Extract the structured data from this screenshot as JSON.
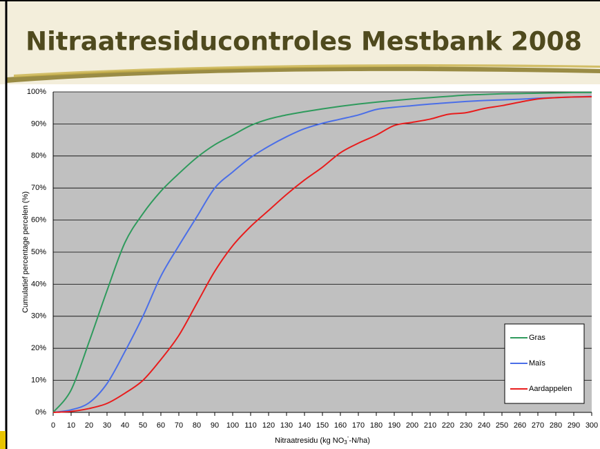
{
  "chart_data": {
    "type": "line",
    "title": "Nitraatresiducontroles Mestbank 2008",
    "ylabel": "Cumulatief percentage percelen (%)",
    "xlabel": [
      "Nitraatresidu (kg NO",
      "3",
      "-",
      "-N/ha)"
    ],
    "x": [
      0,
      10,
      20,
      30,
      40,
      50,
      60,
      70,
      80,
      90,
      100,
      110,
      120,
      130,
      140,
      150,
      160,
      170,
      180,
      190,
      200,
      210,
      220,
      230,
      240,
      250,
      260,
      270,
      280,
      290,
      300
    ],
    "series": [
      {
        "name": "Gras",
        "color": "#2e9a5c",
        "values": [
          0,
          7,
          22,
          38,
          53,
          62,
          69,
          74.5,
          79.5,
          83.5,
          86.5,
          89.5,
          91.5,
          92.8,
          93.8,
          94.7,
          95.5,
          96.2,
          96.8,
          97.3,
          97.8,
          98.2,
          98.6,
          99,
          99.2,
          99.4,
          99.5,
          99.6,
          99.7,
          99.8,
          99.8
        ]
      },
      {
        "name": "Maïs",
        "color": "#4a6ee8",
        "values": [
          0,
          0.8,
          3,
          9,
          19,
          30,
          42.5,
          52,
          61,
          70,
          75,
          79.5,
          83,
          86,
          88.5,
          90.2,
          91.5,
          92.8,
          94.5,
          95.2,
          95.7,
          96.2,
          96.6,
          97,
          97.3,
          97.5,
          97.7,
          98,
          98.2,
          98.4,
          98.6
        ]
      },
      {
        "name": "Aardappelen",
        "color": "#e81c1c",
        "values": [
          0,
          0.3,
          1.2,
          2.8,
          6,
          10,
          16.5,
          24,
          34,
          44,
          52,
          58,
          63,
          68,
          72.5,
          76.5,
          81,
          84,
          86.5,
          89.5,
          90.5,
          91.5,
          93,
          93.5,
          94.8,
          95.7,
          96.8,
          97.8,
          98.2,
          98.4,
          98.5
        ]
      }
    ],
    "xlim": [
      0,
      300
    ],
    "xticks": [
      0,
      10,
      20,
      30,
      40,
      50,
      60,
      70,
      80,
      90,
      100,
      110,
      120,
      130,
      140,
      150,
      160,
      170,
      180,
      190,
      200,
      210,
      220,
      230,
      240,
      250,
      260,
      270,
      280,
      290,
      300
    ],
    "ylim": [
      0,
      100
    ],
    "yticks": [
      {
        "value": 0,
        "label": "0%"
      },
      {
        "value": 10,
        "label": "10%"
      },
      {
        "value": 20,
        "label": "20%"
      },
      {
        "value": 30,
        "label": "30%"
      },
      {
        "value": 40,
        "label": "40%"
      },
      {
        "value": 50,
        "label": "50%"
      },
      {
        "value": 60,
        "label": "60%"
      },
      {
        "value": 70,
        "label": "70%"
      },
      {
        "value": 80,
        "label": "80%"
      },
      {
        "value": 90,
        "label": "90%"
      },
      {
        "value": 100,
        "label": "100%"
      }
    ],
    "grid": true,
    "legend": "lower right"
  }
}
